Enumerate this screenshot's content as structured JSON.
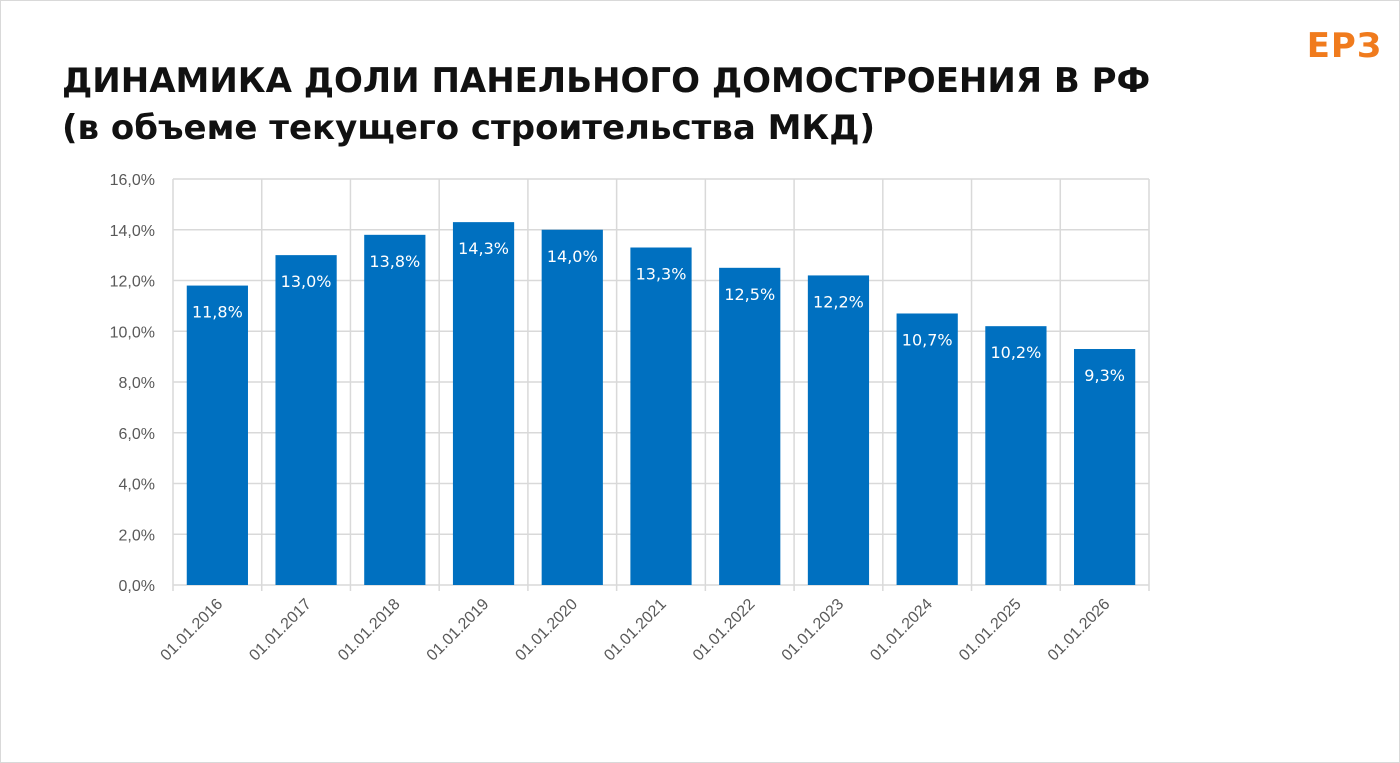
{
  "brand": {
    "logo_text": "ЕРЗ",
    "accent_color": "#f07b1d"
  },
  "header": {
    "title_line1": "ДИНАМИКА ДОЛИ ПАНЕЛЬНОГО ДОМОСТРОЕНИЯ В РФ",
    "title_line2": "(в объеме текущего строительства МКД)"
  },
  "chart_data": {
    "type": "bar",
    "categories": [
      "01.01.2016",
      "01.01.2017",
      "01.01.2018",
      "01.01.2019",
      "01.01.2020",
      "01.01.2021",
      "01.01.2022",
      "01.01.2023",
      "01.01.2024",
      "01.01.2025",
      "01.01.2026"
    ],
    "values": [
      11.8,
      13.0,
      13.8,
      14.3,
      14.0,
      13.3,
      12.5,
      12.2,
      10.7,
      10.2,
      9.3
    ],
    "value_labels": [
      "11,8%",
      "13,0%",
      "13,8%",
      "14,3%",
      "14,0%",
      "13,3%",
      "12,5%",
      "12,2%",
      "10,7%",
      "10,2%",
      "9,3%"
    ],
    "y_ticks": [
      "0,0%",
      "2,0%",
      "4,0%",
      "6,0%",
      "8,0%",
      "10,0%",
      "12,0%",
      "14,0%",
      "16,0%"
    ],
    "ylim": [
      0,
      16
    ],
    "grid": true,
    "bar_color": "#0070c0",
    "grid_color": "#d9d9d9",
    "x_label_rotation": "-45 degrees"
  }
}
